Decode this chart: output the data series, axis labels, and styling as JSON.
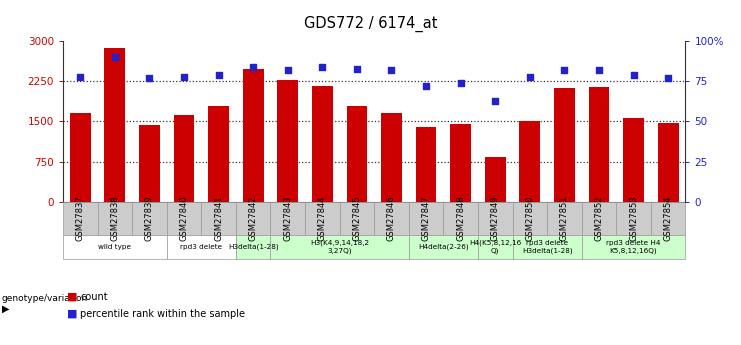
{
  "title": "GDS772 / 6174_at",
  "samples": [
    "GSM27837",
    "GSM27838",
    "GSM27839",
    "GSM27840",
    "GSM27841",
    "GSM27842",
    "GSM27843",
    "GSM27844",
    "GSM27845",
    "GSM27846",
    "GSM27847",
    "GSM27848",
    "GSM27849",
    "GSM27850",
    "GSM27851",
    "GSM27852",
    "GSM27853",
    "GSM27854"
  ],
  "counts": [
    1650,
    2875,
    1430,
    1620,
    1790,
    2480,
    2270,
    2160,
    1790,
    1660,
    1390,
    1460,
    830,
    1510,
    2130,
    2140,
    1565,
    1465
  ],
  "percentiles": [
    78,
    90,
    77,
    78,
    79,
    84,
    82,
    84,
    83,
    82,
    72,
    74,
    63,
    78,
    82,
    82,
    79,
    77
  ],
  "bar_color": "#cc0000",
  "dot_color": "#2222cc",
  "ylim_left": [
    0,
    3000
  ],
  "ylim_right": [
    0,
    100
  ],
  "yticks_left": [
    0,
    750,
    1500,
    2250,
    3000
  ],
  "yticks_right": [
    0,
    25,
    50,
    75,
    100
  ],
  "ytick_labels_right": [
    "0",
    "25",
    "50",
    "75",
    "100%"
  ],
  "hlines": [
    750,
    1500,
    2250
  ],
  "groups": [
    {
      "label": "wild type",
      "start": 0,
      "end": 3,
      "color": "#ffffff"
    },
    {
      "label": "rpd3 delete",
      "start": 3,
      "end": 5,
      "color": "#ffffff"
    },
    {
      "label": "H3delta(1-28)",
      "start": 5,
      "end": 6,
      "color": "#ccffcc"
    },
    {
      "label": "H3(K4,9,14,18,2\n3,27Q)",
      "start": 6,
      "end": 10,
      "color": "#ccffcc"
    },
    {
      "label": "H4delta(2-26)",
      "start": 10,
      "end": 12,
      "color": "#ccffcc"
    },
    {
      "label": "H4(K5,8,12,16\nQ)",
      "start": 12,
      "end": 13,
      "color": "#ccffcc"
    },
    {
      "label": "rpd3 delete\nH3delta(1-28)",
      "start": 13,
      "end": 15,
      "color": "#ccffcc"
    },
    {
      "label": "rpd3 delete H4\nK5,8,12,16Q)",
      "start": 15,
      "end": 18,
      "color": "#ccffcc"
    }
  ],
  "legend_count_label": "count",
  "legend_pct_label": "percentile rank within the sample",
  "genotype_label": "genotype/variation",
  "background_color": "#ffffff",
  "tick_bg_color": "#cccccc",
  "tick_border_color": "#999999"
}
